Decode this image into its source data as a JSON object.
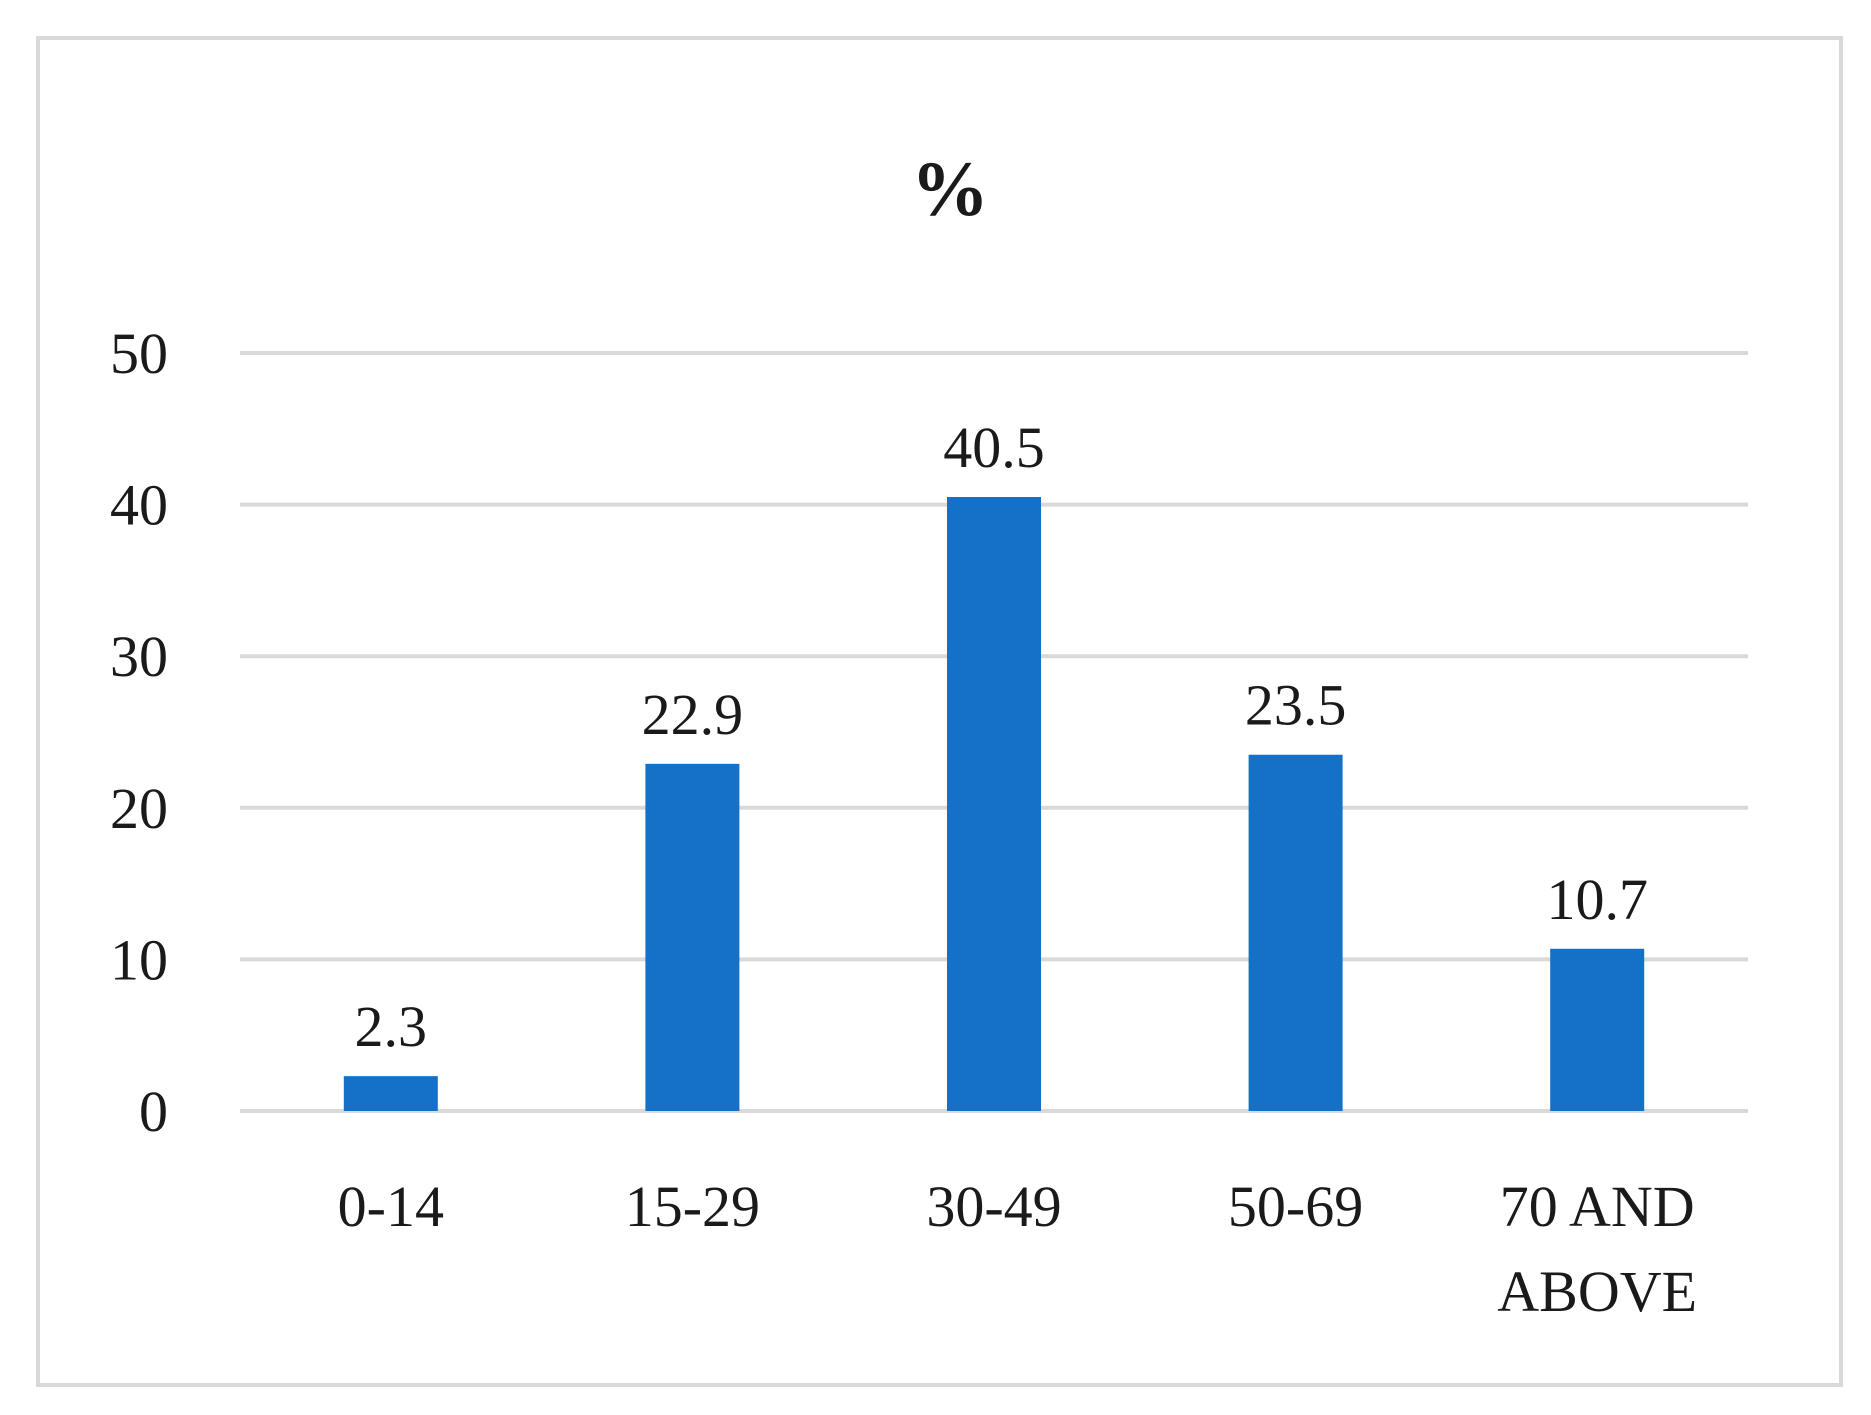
{
  "chart_data": {
    "type": "bar",
    "title": "%",
    "xlabel": "",
    "ylabel": "",
    "categories": [
      [
        "0-14"
      ],
      [
        "15-29"
      ],
      [
        "30-49"
      ],
      [
        "50-69"
      ],
      [
        "70 AND",
        "ABOVE"
      ]
    ],
    "values": [
      2.3,
      22.9,
      40.5,
      23.5,
      10.7
    ],
    "data_labels": [
      "2.3",
      "22.9",
      "40.5",
      "23.5",
      "10.7"
    ],
    "ylim": [
      0,
      50
    ],
    "yticks": [
      "0",
      "10",
      "20",
      "30",
      "40",
      "50"
    ],
    "grid": true,
    "legend": "none",
    "colors": {
      "bar": "#1570c8",
      "grid": "#d9d9d9",
      "frame": "#d9d9d9"
    }
  }
}
